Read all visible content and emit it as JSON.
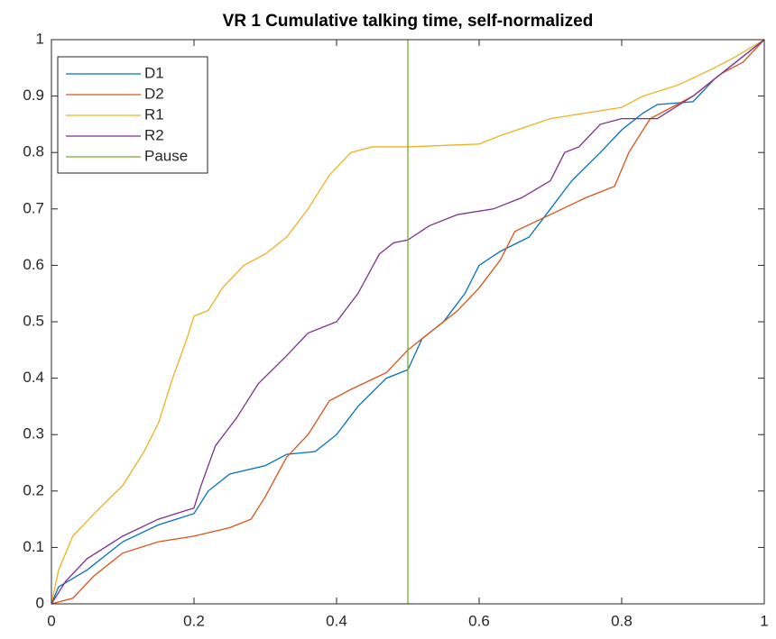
{
  "chart_data": {
    "type": "line",
    "title": "VR 1 Cumulative talking time, self-normalized",
    "xlim": [
      0,
      1
    ],
    "ylim": [
      0,
      1
    ],
    "xticks": [
      0,
      0.2,
      0.4,
      0.6,
      0.8,
      1
    ],
    "yticks": [
      0,
      0.1,
      0.2,
      0.3,
      0.4,
      0.5,
      0.6,
      0.7,
      0.8,
      0.9,
      1
    ],
    "legend": "top-left",
    "series": [
      {
        "name": "D1",
        "color": "#0072bd",
        "x": [
          0,
          0.01,
          0.05,
          0.1,
          0.15,
          0.2,
          0.22,
          0.25,
          0.3,
          0.33,
          0.37,
          0.4,
          0.43,
          0.47,
          0.5,
          0.52,
          0.55,
          0.58,
          0.6,
          0.63,
          0.67,
          0.7,
          0.73,
          0.77,
          0.8,
          0.83,
          0.85,
          0.9,
          0.93,
          0.96,
          0.98,
          1
        ],
        "values": [
          0,
          0.03,
          0.06,
          0.11,
          0.14,
          0.16,
          0.2,
          0.23,
          0.245,
          0.265,
          0.27,
          0.3,
          0.35,
          0.4,
          0.415,
          0.47,
          0.5,
          0.55,
          0.6,
          0.625,
          0.65,
          0.7,
          0.75,
          0.8,
          0.84,
          0.87,
          0.885,
          0.89,
          0.93,
          0.96,
          0.98,
          1
        ]
      },
      {
        "name": "D2",
        "color": "#d95319",
        "x": [
          0,
          0.03,
          0.06,
          0.1,
          0.15,
          0.2,
          0.25,
          0.28,
          0.3,
          0.33,
          0.36,
          0.39,
          0.42,
          0.47,
          0.5,
          0.53,
          0.57,
          0.6,
          0.63,
          0.65,
          0.7,
          0.75,
          0.79,
          0.81,
          0.84,
          0.87,
          0.9,
          0.94,
          0.97,
          1
        ],
        "values": [
          0,
          0.01,
          0.05,
          0.09,
          0.11,
          0.12,
          0.135,
          0.15,
          0.19,
          0.26,
          0.3,
          0.36,
          0.38,
          0.41,
          0.45,
          0.48,
          0.52,
          0.56,
          0.61,
          0.66,
          0.69,
          0.72,
          0.74,
          0.8,
          0.86,
          0.88,
          0.9,
          0.94,
          0.96,
          1
        ]
      },
      {
        "name": "R1",
        "color": "#edb120",
        "x": [
          0,
          0.01,
          0.03,
          0.06,
          0.1,
          0.13,
          0.15,
          0.17,
          0.19,
          0.2,
          0.22,
          0.24,
          0.27,
          0.3,
          0.33,
          0.36,
          0.39,
          0.42,
          0.45,
          0.5,
          0.6,
          0.63,
          0.7,
          0.8,
          0.83,
          0.88,
          0.93,
          0.96,
          1
        ],
        "values": [
          0,
          0.06,
          0.12,
          0.16,
          0.21,
          0.27,
          0.32,
          0.4,
          0.47,
          0.51,
          0.52,
          0.56,
          0.6,
          0.62,
          0.65,
          0.7,
          0.76,
          0.8,
          0.81,
          0.81,
          0.815,
          0.83,
          0.86,
          0.88,
          0.9,
          0.92,
          0.95,
          0.97,
          1
        ]
      },
      {
        "name": "R2",
        "color": "#7e2f8e",
        "x": [
          0,
          0.02,
          0.05,
          0.1,
          0.15,
          0.2,
          0.21,
          0.23,
          0.26,
          0.29,
          0.33,
          0.36,
          0.4,
          0.43,
          0.46,
          0.48,
          0.5,
          0.53,
          0.57,
          0.62,
          0.66,
          0.7,
          0.72,
          0.74,
          0.77,
          0.8,
          0.85,
          0.9,
          0.95,
          0.98,
          1
        ],
        "values": [
          0,
          0.04,
          0.08,
          0.12,
          0.15,
          0.17,
          0.21,
          0.28,
          0.33,
          0.39,
          0.44,
          0.48,
          0.5,
          0.55,
          0.62,
          0.64,
          0.645,
          0.67,
          0.69,
          0.7,
          0.72,
          0.75,
          0.8,
          0.81,
          0.85,
          0.86,
          0.86,
          0.9,
          0.95,
          0.98,
          1
        ]
      },
      {
        "name": "Pause",
        "color": "#77ac30",
        "x": [
          0.5,
          0.5
        ],
        "values": [
          0,
          1
        ]
      }
    ]
  }
}
